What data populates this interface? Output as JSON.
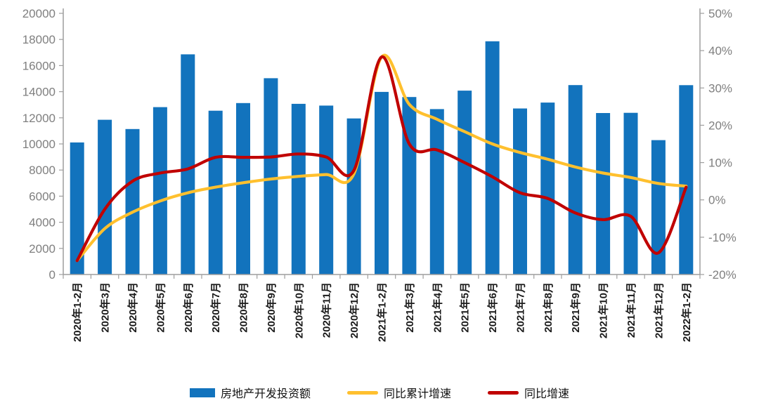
{
  "chart_data": {
    "type": "combo-bar-line",
    "title": "",
    "categories": [
      "2020年1-2月",
      "2020年3月",
      "2020年4月",
      "2020年5月",
      "2020年6月",
      "2020年7月",
      "2020年8月",
      "2020年9月",
      "2020年10月",
      "2020年11月",
      "2020年12月",
      "2021年1-2月",
      "2021年3月",
      "2021年4月",
      "2021年5月",
      "2021年6月",
      "2021年7月",
      "2021年8月",
      "2021年9月",
      "2021年10月",
      "2021年11月",
      "2021年12月",
      "2022年1-2月"
    ],
    "series": [
      {
        "name": "房地产开发投资额",
        "type": "bar",
        "axis": "left",
        "color": "#1273BD",
        "values": [
          10115,
          11848,
          11140,
          12817,
          16860,
          12545,
          13129,
          15030,
          13072,
          12936,
          11951,
          13986,
          13590,
          12664,
          14078,
          17861,
          12716,
          13165,
          14508,
          12366,
          12380,
          10288,
          14499
        ]
      },
      {
        "name": "同比累计增速",
        "type": "line",
        "axis": "right",
        "color": "#FFC02E",
        "values": [
          -16.3,
          -7.7,
          -3.3,
          -0.3,
          1.9,
          3.4,
          4.6,
          5.6,
          6.3,
          6.8,
          7.0,
          38.3,
          25.6,
          21.6,
          18.3,
          15.0,
          12.7,
          10.9,
          8.8,
          7.2,
          6.0,
          4.4,
          3.7
        ]
      },
      {
        "name": "同比增速",
        "type": "line",
        "axis": "right",
        "color": "#C00000",
        "values": [
          -16.3,
          -2.5,
          5.0,
          7.2,
          8.3,
          11.4,
          11.4,
          11.5,
          12.3,
          11.5,
          7.9,
          38.3,
          15.0,
          13.4,
          10.0,
          6.2,
          1.9,
          0.4,
          -3.5,
          -5.3,
          -4.4,
          -14.2,
          3.4
        ]
      }
    ],
    "left_axis": {
      "min": 0,
      "max": 20000,
      "step": 2000,
      "tick_labels": [
        "0",
        "2000",
        "4000",
        "6000",
        "8000",
        "10000",
        "12000",
        "14000",
        "16000",
        "18000",
        "20000"
      ]
    },
    "right_axis": {
      "min": -20,
      "max": 50,
      "step": 10,
      "tick_labels": [
        "-20%",
        "-10%",
        "0%",
        "10%",
        "20%",
        "30%",
        "40%",
        "50%"
      ]
    },
    "grid": false,
    "legend_position": "bottom",
    "styles": {
      "axis_line_color": "#9e9e9e",
      "y_tick_label_color": "#7f7f7f",
      "x_tick_label_color": "#1a1a1a",
      "background": "#ffffff"
    }
  }
}
